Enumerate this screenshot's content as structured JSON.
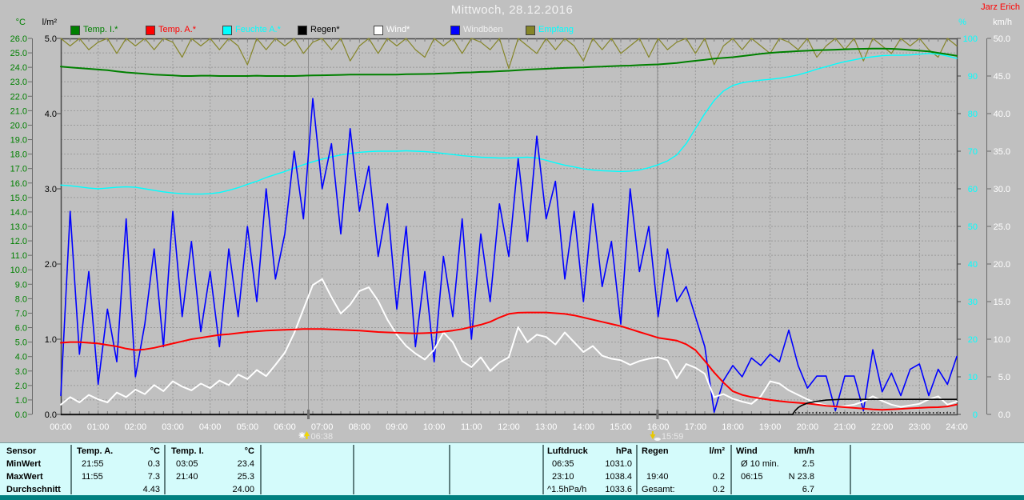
{
  "title": "Mittwoch, 28.12.2016",
  "credit": "Jarz Erich",
  "legend": [
    {
      "label": "Temp. I.*",
      "swatch_color": "#008000",
      "text_color": "#008000"
    },
    {
      "label": "Temp. A.*",
      "swatch_color": "#ff0000",
      "text_color": "#ff0000"
    },
    {
      "label": "Feuchte A.*",
      "swatch_color": "#00ffff",
      "text_color": "#00ffff"
    },
    {
      "label": "Regen*",
      "swatch_color": "#000000",
      "text_color": "#000000"
    },
    {
      "label": "Wind*",
      "swatch_color": "#ffffff",
      "text_color": "#ffffff"
    },
    {
      "label": "Windböen",
      "swatch_color": "#0000ff",
      "text_color": "#f0f0f0"
    },
    {
      "label": "Empfang",
      "swatch_color": "#858528",
      "text_color": "#00ffff"
    }
  ],
  "axes": {
    "left_unit_temp": "°C",
    "left_unit_rain": "l/m²",
    "right_unit_humidity": "%",
    "right_unit_wind": "km/h",
    "temp_ticks": [
      "26.0",
      "25.0",
      "24.0",
      "23.0",
      "22.0",
      "21.0",
      "20.0",
      "19.0",
      "18.0",
      "17.0",
      "16.0",
      "15.0",
      "14.0",
      "13.0",
      "12.0",
      "11.0",
      "10.0",
      "9.0",
      "8.0",
      "7.0",
      "6.0",
      "5.0",
      "4.0",
      "3.0",
      "2.0",
      "1.0",
      "0.0"
    ],
    "rain_ticks": [
      "5.0",
      "4.0",
      "3.0",
      "2.0",
      "1.0",
      "0.0"
    ],
    "humidity_ticks": [
      "100",
      "90",
      "80",
      "70",
      "60",
      "50",
      "40",
      "30",
      "20",
      "10",
      "0"
    ],
    "wind_ticks": [
      "50.0",
      "45.0",
      "40.0",
      "35.0",
      "30.0",
      "25.0",
      "20.0",
      "15.0",
      "10.0",
      "5.0",
      "0.0"
    ],
    "time_ticks": [
      "00:00",
      "01:00",
      "02:00",
      "03:00",
      "04:00",
      "05:00",
      "06:00",
      "07:00",
      "08:00",
      "09:00",
      "10:00",
      "11:00",
      "12:00",
      "13:00",
      "14:00",
      "15:00",
      "16:00",
      "17:00",
      "18:00",
      "19:00",
      "20:00",
      "21:00",
      "22:00",
      "23:00",
      "24:00"
    ]
  },
  "markers": {
    "sunrise": {
      "label": "06:38",
      "hour": 6.633
    },
    "sunset": {
      "label": "15:59",
      "hour": 15.983
    }
  },
  "chart_data": {
    "type": "line",
    "title": "Mittwoch, 28.12.2016",
    "x_unit": "hour",
    "x_start": 0,
    "x_step": 0.25,
    "grid": true,
    "legend_position": "top",
    "axis_ranges": {
      "temp_c": [
        0,
        26
      ],
      "rain_lm2": [
        0,
        5
      ],
      "humidity_pct": [
        0,
        100
      ],
      "wind_kmh": [
        0,
        50
      ]
    },
    "rain_trace_dotted": {
      "from": 19.67,
      "to": 24
    },
    "series": [
      {
        "name": "Temp. I.",
        "unit": "°C",
        "color": "#008000",
        "axis": "temp_c",
        "values": [
          24.05,
          24.0,
          23.95,
          23.9,
          23.85,
          23.8,
          23.72,
          23.65,
          23.6,
          23.55,
          23.5,
          23.47,
          23.44,
          23.4,
          23.4,
          23.42,
          23.42,
          23.4,
          23.4,
          23.4,
          23.4,
          23.42,
          23.4,
          23.4,
          23.4,
          23.4,
          23.42,
          23.44,
          23.45,
          23.46,
          23.48,
          23.5,
          23.5,
          23.5,
          23.5,
          23.5,
          23.5,
          23.52,
          23.53,
          23.54,
          23.55,
          23.58,
          23.6,
          23.63,
          23.65,
          23.68,
          23.7,
          23.73,
          23.76,
          23.8,
          23.84,
          23.87,
          23.9,
          23.93,
          23.96,
          23.98,
          24.0,
          24.03,
          24.05,
          24.08,
          24.1,
          24.12,
          24.15,
          24.18,
          24.2,
          24.25,
          24.3,
          24.38,
          24.45,
          24.52,
          24.6,
          24.65,
          24.7,
          24.78,
          24.85,
          24.93,
          25.0,
          25.05,
          25.08,
          25.12,
          25.15,
          25.18,
          25.2,
          25.22,
          25.25,
          25.27,
          25.28,
          25.3,
          25.3,
          25.28,
          25.25,
          25.2,
          25.15,
          25.1,
          25.0,
          24.9,
          24.8
        ]
      },
      {
        "name": "Temp. A.",
        "unit": "°C",
        "color": "#ff0000",
        "axis": "temp_c",
        "values": [
          4.95,
          5.0,
          5.0,
          4.95,
          4.9,
          4.8,
          4.7,
          4.55,
          4.45,
          4.5,
          4.6,
          4.75,
          4.9,
          5.05,
          5.2,
          5.3,
          5.4,
          5.5,
          5.55,
          5.62,
          5.7,
          5.75,
          5.8,
          5.82,
          5.85,
          5.87,
          5.9,
          5.9,
          5.9,
          5.88,
          5.85,
          5.82,
          5.8,
          5.75,
          5.7,
          5.67,
          5.65,
          5.62,
          5.6,
          5.62,
          5.65,
          5.72,
          5.8,
          5.9,
          6.05,
          6.2,
          6.4,
          6.7,
          6.95,
          7.03,
          7.05,
          7.05,
          7.05,
          7.0,
          6.95,
          6.85,
          6.7,
          6.55,
          6.4,
          6.25,
          6.1,
          5.9,
          5.7,
          5.5,
          5.3,
          5.2,
          5.1,
          4.85,
          4.45,
          3.7,
          2.9,
          2.2,
          1.6,
          1.35,
          1.2,
          1.1,
          1.0,
          0.92,
          0.85,
          0.8,
          0.75,
          0.68,
          0.6,
          0.55,
          0.5,
          0.45,
          0.4,
          0.35,
          0.32,
          0.35,
          0.38,
          0.42,
          0.45,
          0.48,
          0.5,
          0.55,
          0.68
        ]
      },
      {
        "name": "Feuchte A.",
        "unit": "%",
        "color": "#00ffff",
        "axis": "humidity_pct",
        "values": [
          61.0,
          60.8,
          60.5,
          60.2,
          60.0,
          60.2,
          60.4,
          60.5,
          60.4,
          60.0,
          59.6,
          59.2,
          58.9,
          58.7,
          58.6,
          58.6,
          58.7,
          59.0,
          59.6,
          60.3,
          61.2,
          62.0,
          63.0,
          63.8,
          64.6,
          65.5,
          66.4,
          67.2,
          67.9,
          68.5,
          69.0,
          69.4,
          69.7,
          69.9,
          70.0,
          70.0,
          70.0,
          70.1,
          70.0,
          69.9,
          69.7,
          69.4,
          69.1,
          68.8,
          68.6,
          68.4,
          68.3,
          68.2,
          68.2,
          68.3,
          68.4,
          68.2,
          67.6,
          66.9,
          66.3,
          65.8,
          65.3,
          65.0,
          64.8,
          64.7,
          64.6,
          64.7,
          65.0,
          65.6,
          66.4,
          67.4,
          69.0,
          72.0,
          76.0,
          80.0,
          83.5,
          86.0,
          87.5,
          88.2,
          88.6,
          88.9,
          89.1,
          89.4,
          89.8,
          90.3,
          91.0,
          91.8,
          92.5,
          93.2,
          93.8,
          94.3,
          94.8,
          95.1,
          95.4,
          95.5,
          95.5,
          95.6,
          95.8,
          96.0,
          95.8,
          95.3,
          94.7
        ]
      },
      {
        "name": "Wind",
        "unit": "km/h",
        "color": "#ffffff",
        "axis": "wind_kmh",
        "values": [
          1.3,
          2.3,
          1.6,
          2.6,
          2.0,
          1.6,
          2.9,
          2.3,
          3.3,
          2.7,
          3.9,
          3.1,
          4.4,
          3.7,
          3.2,
          4.1,
          3.5,
          4.5,
          3.9,
          5.3,
          4.7,
          5.9,
          5.1,
          6.6,
          8.2,
          10.8,
          14.0,
          17.2,
          18.0,
          15.6,
          13.4,
          14.6,
          16.4,
          16.9,
          15.1,
          12.6,
          10.6,
          9.1,
          8.1,
          7.3,
          8.6,
          10.9,
          9.6,
          7.1,
          6.3,
          7.6,
          5.8,
          6.9,
          7.6,
          11.6,
          9.6,
          10.6,
          10.3,
          9.3,
          10.9,
          9.6,
          8.3,
          9.1,
          7.8,
          7.4,
          7.2,
          6.6,
          7.1,
          7.4,
          7.6,
          7.2,
          4.8,
          6.7,
          6.2,
          5.4,
          2.3,
          2.7,
          2.1,
          1.7,
          1.4,
          2.4,
          4.4,
          4.1,
          3.2,
          2.6,
          2.0,
          1.5,
          1.2,
          1.0,
          1.1,
          1.3,
          1.7,
          2.4,
          1.8,
          1.3,
          1.0,
          1.2,
          1.4,
          2.0,
          2.4,
          1.3,
          1.7
        ]
      },
      {
        "name": "Windböen",
        "unit": "km/h",
        "color": "#0000ff",
        "axis": "wind_kmh",
        "values": [
          2.5,
          27,
          8,
          19,
          4,
          14,
          7,
          26,
          5,
          12,
          22,
          9,
          27,
          13,
          23,
          11,
          19,
          9,
          22,
          13,
          25,
          15,
          30,
          18,
          24,
          35,
          26,
          42,
          30,
          36,
          24,
          38,
          27,
          33,
          21,
          28,
          14,
          25,
          9,
          19,
          7,
          21,
          13,
          26,
          10,
          24,
          15,
          28,
          21,
          34,
          23,
          37,
          26,
          31,
          18,
          27,
          15,
          28,
          17,
          23,
          12,
          30,
          19,
          25,
          13,
          22,
          15,
          17,
          13,
          9,
          0.3,
          4.5,
          6.5,
          5,
          7.5,
          6.5,
          8,
          7,
          11.2,
          6.5,
          3.5,
          5.1,
          5.1,
          0.5,
          5.1,
          5.1,
          0.5,
          8.6,
          3,
          5.5,
          2.5,
          6,
          6.7,
          2.5,
          6,
          4,
          7.7
        ]
      },
      {
        "name": "Empfang",
        "unit": "%",
        "color": "#858528",
        "axis": "humidity_pct",
        "values": [
          100,
          98,
          100,
          97,
          99,
          100,
          96,
          100,
          98,
          100,
          97,
          100,
          99,
          95,
          100,
          98,
          100,
          97,
          100,
          98,
          93,
          100,
          97,
          100,
          98,
          100,
          96,
          99,
          100,
          97,
          100,
          94,
          98,
          100,
          96,
          100,
          98,
          100,
          97,
          95,
          100,
          98,
          100,
          96,
          100,
          99,
          97,
          100,
          92,
          100,
          98,
          96,
          100,
          97,
          100,
          98,
          94,
          100,
          97,
          100,
          96,
          98,
          100,
          95,
          100,
          97,
          99,
          100,
          96,
          100,
          93,
          98,
          100,
          97,
          100,
          98,
          96,
          100,
          99,
          97,
          100,
          95,
          98,
          100,
          97,
          100,
          94,
          100,
          98,
          96,
          100,
          98,
          100,
          97,
          95,
          100,
          98
        ]
      },
      {
        "name": "Regen",
        "unit": "l/m²",
        "color": "#000000",
        "axis": "rain_lm2",
        "points": [
          [
            0,
            0
          ],
          [
            19.6,
            0
          ],
          [
            19.67,
            0.05
          ],
          [
            19.75,
            0.09
          ],
          [
            19.85,
            0.12
          ],
          [
            20.0,
            0.15
          ],
          [
            20.2,
            0.17
          ],
          [
            20.5,
            0.19
          ],
          [
            20.9,
            0.2
          ],
          [
            24,
            0.2
          ]
        ]
      }
    ]
  },
  "table": {
    "row_labels": [
      "Sensor",
      "MinWert",
      "MaxWert",
      "Durchschnitt"
    ],
    "columns": [
      {
        "name": "Temp. A.",
        "unit": "°C",
        "rows": [
          [
            "21:55",
            "0.3"
          ],
          [
            "11:55",
            "7.3"
          ],
          [
            "",
            "4.43"
          ]
        ]
      },
      {
        "name": "Temp. I.",
        "unit": "°C",
        "rows": [
          [
            "03:05",
            "23.4"
          ],
          [
            "21:40",
            "25.3"
          ],
          [
            "",
            "24.00"
          ]
        ]
      },
      {
        "name": "",
        "unit": "",
        "rows": [
          [
            "",
            ""
          ],
          [
            "",
            ""
          ],
          [
            "",
            ""
          ]
        ]
      },
      {
        "name": "",
        "unit": "",
        "rows": [
          [
            "",
            ""
          ],
          [
            "",
            ""
          ],
          [
            "",
            ""
          ]
        ]
      },
      {
        "name": "",
        "unit": "",
        "rows": [
          [
            "",
            ""
          ],
          [
            "",
            ""
          ],
          [
            "",
            ""
          ]
        ]
      },
      {
        "name": "Luftdruck",
        "unit": "hPa",
        "rows": [
          [
            "06:35",
            "1031.0"
          ],
          [
            "23:10",
            "1038.4"
          ],
          [
            "^1.5hPa/h",
            "1033.6"
          ]
        ]
      },
      {
        "name": "Regen",
        "unit": "l/m²",
        "rows": [
          [
            "",
            ""
          ],
          [
            "19:40",
            "0.2"
          ],
          [
            "Gesamt:",
            "0.2"
          ]
        ]
      },
      {
        "name": "Wind",
        "unit": "km/h",
        "rows": [
          [
            "Ø 10 min.",
            "2.5"
          ],
          [
            "06:15",
            "N 23.8"
          ],
          [
            "",
            "6.7"
          ]
        ]
      }
    ]
  },
  "colors": {
    "background": "#c0c0c0",
    "grid": "#9a9a9a",
    "frame": "#4a4a4a",
    "panel_bg": "#d4fbfb",
    "bottom_stripe": "#008080",
    "title_text": "#f2f2f2",
    "credit_text": "#ff0000",
    "marker_text": "#e8e8e8"
  }
}
